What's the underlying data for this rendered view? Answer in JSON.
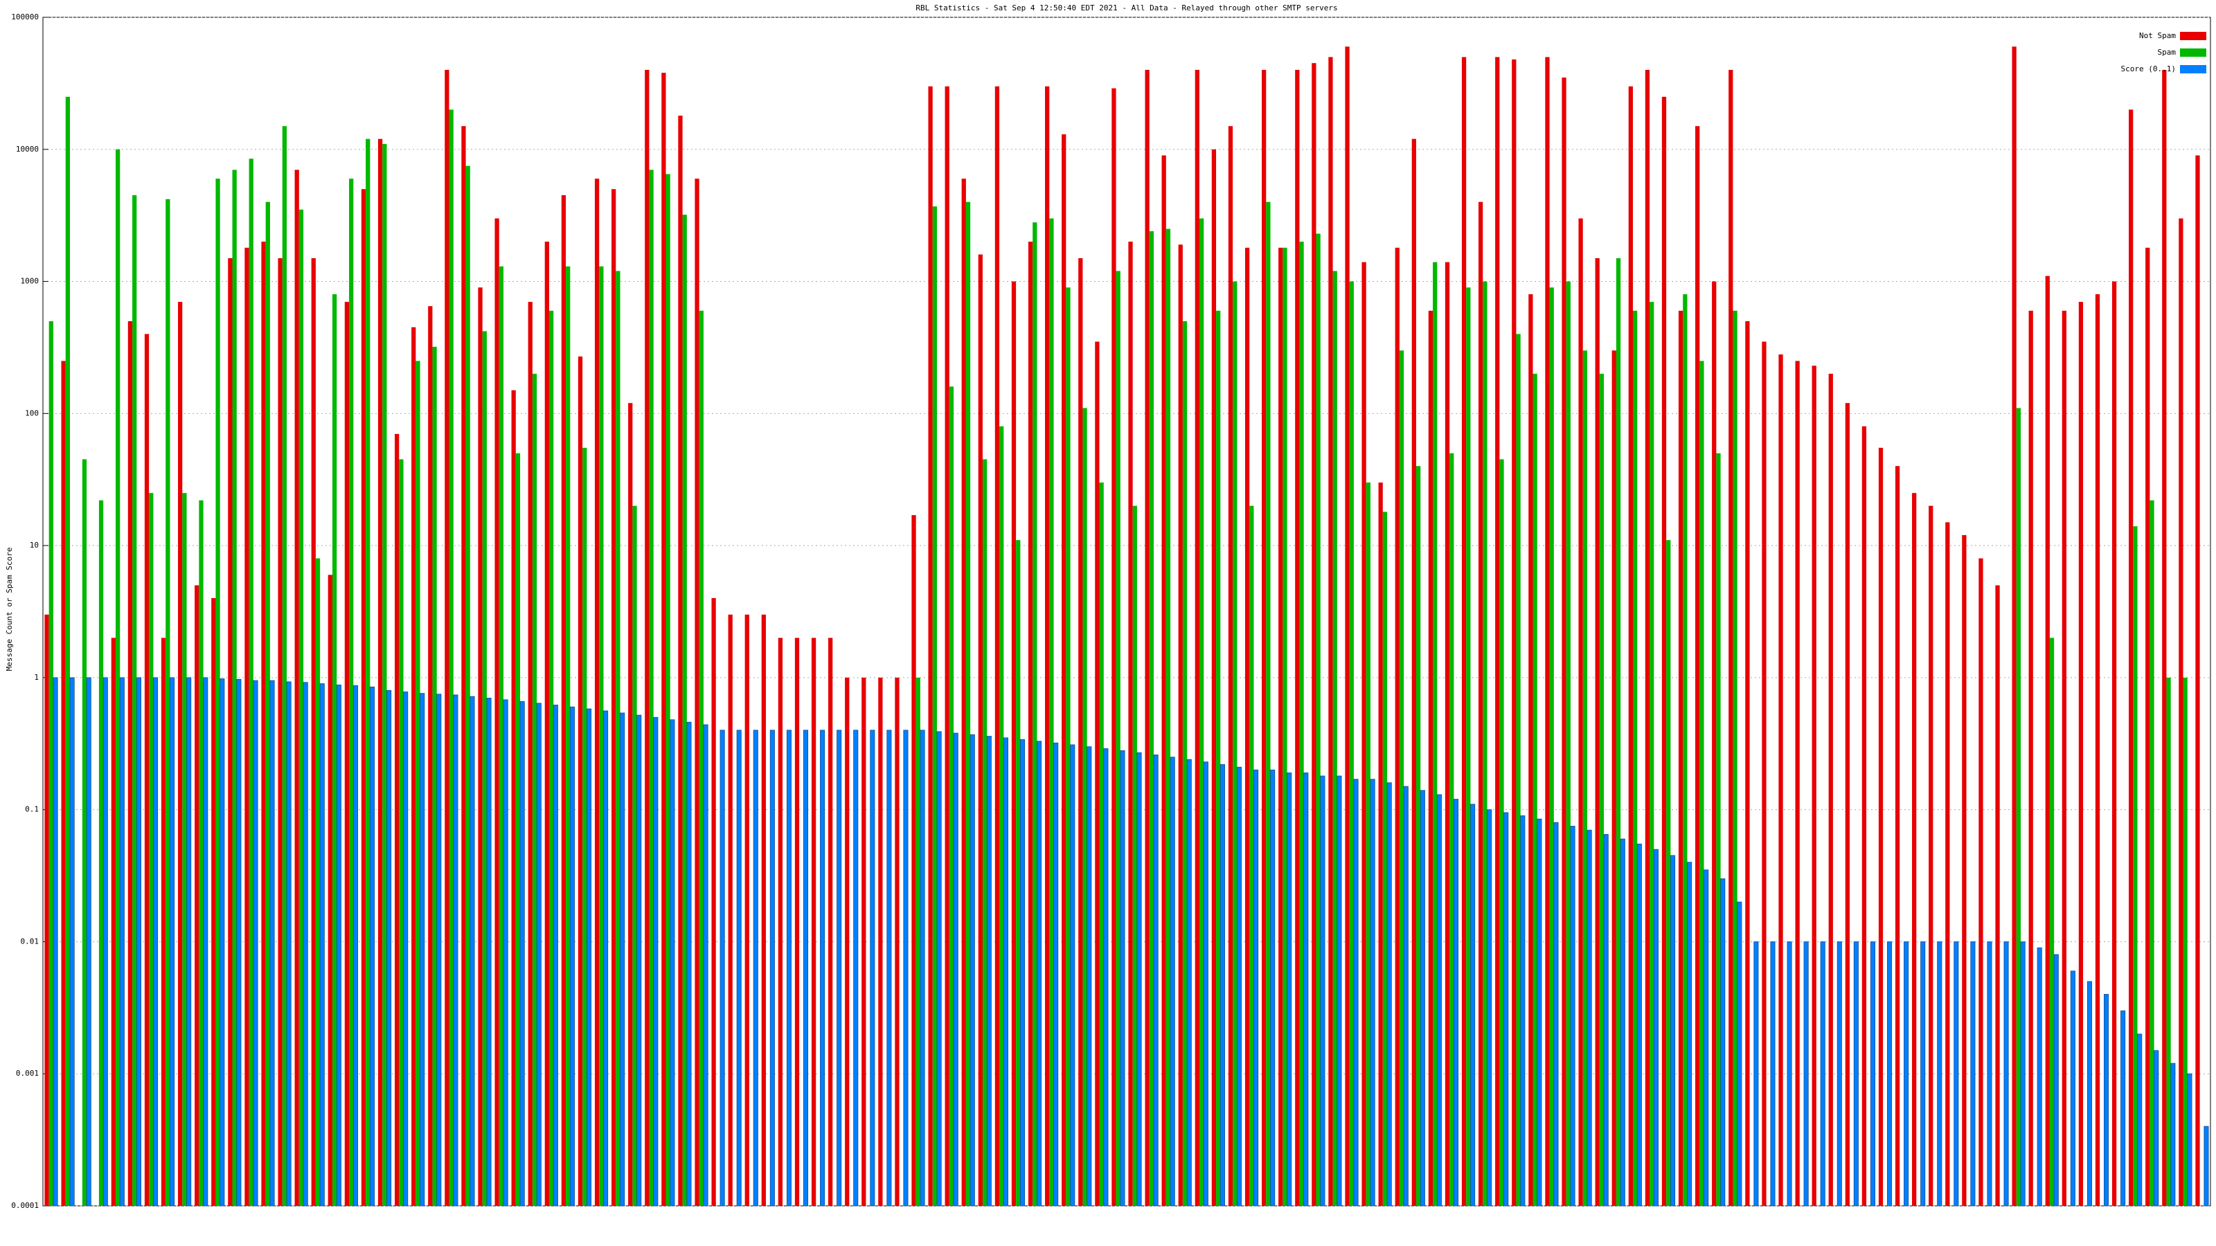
{
  "chart_data": {
    "type": "bar",
    "title": "RBL Statistics - Sat Sep  4 12:50:40 EDT 2021 - All Data - Relayed through other SMTP servers",
    "y_label": "Message Count or Spam Score",
    "log_y": true,
    "ylim": [
      0.0001,
      100000
    ],
    "yticks": [
      0.0001,
      0.001,
      0.01,
      0.1,
      1,
      10,
      100,
      1000,
      10000,
      100000
    ],
    "grid": true,
    "legend": "upper right",
    "series": [
      {
        "name": "Not Spam",
        "color": "#e80000",
        "values": [
          3,
          250,
          null,
          null,
          2,
          500,
          400,
          2,
          700,
          5,
          4,
          1500,
          1800,
          2000,
          1500,
          7000,
          1500,
          6,
          700,
          5000,
          12000,
          70,
          450,
          650,
          40000,
          15000,
          900,
          3000,
          150,
          700,
          2000,
          4500,
          270,
          6000,
          5000,
          120,
          40000,
          38000,
          18000,
          6000,
          4,
          3,
          3,
          3,
          2,
          2,
          2,
          2,
          1,
          1,
          1,
          1,
          17,
          30000,
          30000,
          6000,
          1600,
          30000,
          1000,
          2000,
          30000,
          13000,
          1500,
          350,
          29000,
          2000,
          40000,
          9000,
          1900,
          40000,
          10000,
          15000,
          1800,
          40000,
          1800,
          40000,
          45000,
          50000,
          60000,
          1400,
          30,
          1800,
          12000,
          600,
          1400,
          50000,
          4000,
          50000,
          48000,
          800,
          50000,
          35000,
          3000,
          1500,
          300,
          30000,
          40000,
          25000,
          600,
          15000,
          1000,
          40000,
          500,
          350,
          280,
          250,
          230,
          200,
          120,
          80,
          55,
          40,
          25,
          20,
          15,
          12,
          8,
          5,
          60000,
          600,
          1100,
          600,
          700,
          800,
          1000,
          20000,
          1800,
          40000,
          3000,
          9000
        ]
      },
      {
        "name": "Spam",
        "color": "#00b800",
        "values": [
          500,
          25000,
          45,
          22,
          10000,
          4500,
          25,
          4200,
          25,
          22,
          6000,
          7000,
          8500,
          4000,
          15000,
          3500,
          8,
          800,
          6000,
          12000,
          11000,
          45,
          250,
          320,
          20000,
          7500,
          420,
          1300,
          50,
          200,
          600,
          1300,
          55,
          1300,
          1200,
          20,
          7000,
          6500,
          3200,
          600,
          null,
          null,
          null,
          null,
          null,
          null,
          null,
          null,
          null,
          null,
          null,
          null,
          1,
          3700,
          160,
          4000,
          45,
          80,
          11,
          2800,
          3000,
          900,
          110,
          30,
          1200,
          20,
          2400,
          2500,
          500,
          3000,
          600,
          1000,
          20,
          4000,
          1800,
          2000,
          2300,
          1200,
          1000,
          30,
          18,
          300,
          40,
          1400,
          50,
          900,
          1000,
          45,
          400,
          200,
          900,
          1000,
          300,
          200,
          1500,
          600,
          700,
          11,
          800,
          250,
          50,
          600,
          null,
          null,
          null,
          null,
          null,
          null,
          null,
          null,
          null,
          null,
          null,
          null,
          null,
          null,
          null,
          null,
          110,
          null,
          2,
          null,
          null,
          null,
          null,
          14,
          22,
          1,
          1,
          null
        ]
      },
      {
        "name": "Score (0..1)",
        "color": "#0080ff",
        "values": [
          1,
          1,
          1,
          1,
          1,
          1,
          1,
          1,
          1,
          1,
          0.98,
          0.97,
          0.95,
          0.95,
          0.93,
          0.92,
          0.9,
          0.88,
          0.87,
          0.85,
          0.8,
          0.78,
          0.76,
          0.75,
          0.74,
          0.72,
          0.7,
          0.68,
          0.66,
          0.64,
          0.62,
          0.6,
          0.58,
          0.56,
          0.54,
          0.52,
          0.5,
          0.48,
          0.46,
          0.44,
          0.4,
          0.4,
          0.4,
          0.4,
          0.4,
          0.4,
          0.4,
          0.4,
          0.4,
          0.4,
          0.4,
          0.4,
          0.4,
          0.39,
          0.38,
          0.37,
          0.36,
          0.35,
          0.34,
          0.33,
          0.32,
          0.31,
          0.3,
          0.29,
          0.28,
          0.27,
          0.26,
          0.25,
          0.24,
          0.23,
          0.22,
          0.21,
          0.2,
          0.2,
          0.19,
          0.19,
          0.18,
          0.18,
          0.17,
          0.17,
          0.16,
          0.15,
          0.14,
          0.13,
          0.12,
          0.11,
          0.1,
          0.095,
          0.09,
          0.085,
          0.08,
          0.075,
          0.07,
          0.065,
          0.06,
          0.055,
          0.05,
          0.045,
          0.04,
          0.035,
          0.03,
          0.02,
          0.01,
          0.01,
          0.01,
          0.01,
          0.01,
          0.01,
          0.01,
          0.01,
          0.01,
          0.01,
          0.01,
          0.01,
          0.01,
          0.01,
          0.01,
          0.01,
          0.01,
          0.009,
          0.008,
          0.006,
          0.005,
          0.004,
          0.003,
          0.002,
          0.0015,
          0.0012,
          0.001,
          0.0004
        ]
      }
    ]
  }
}
